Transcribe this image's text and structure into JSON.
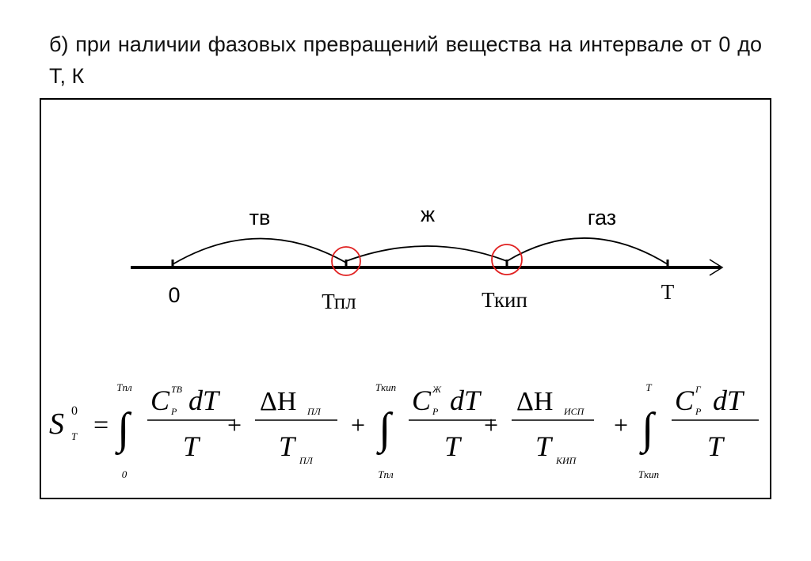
{
  "heading": "б) при наличии фазовых превращений вещества на интервале от 0 до Т, К",
  "diagram": {
    "phases": [
      "тв",
      "ж",
      "газ"
    ],
    "axis_labels": [
      "0",
      "Тпл",
      "Ткип",
      "Т"
    ]
  },
  "formula": {
    "lhs": {
      "symbol": "S",
      "sup": "0",
      "sub": "T",
      "equals": "="
    },
    "terms": [
      {
        "op": null,
        "upper": "Tпл",
        "lower": "0",
        "coef": "C",
        "sup": "ТВ",
        "sub": "P",
        "diff": "dT",
        "den": "T"
      },
      {
        "op": "+",
        "num": "ΔH",
        "num_sub": "ПЛ",
        "den": "T",
        "den_sub": "ПЛ"
      },
      {
        "op": "+",
        "upper": "Tкип",
        "lower": "Tпл",
        "coef": "C",
        "sup": "Ж",
        "sub": "P",
        "diff": "dT",
        "den": "T"
      },
      {
        "op": "+",
        "num": "ΔH",
        "num_sub": "ИСП",
        "den": "T",
        "den_sub": "КИП"
      },
      {
        "op": "+",
        "upper": "T",
        "lower": "Tкип",
        "coef": "C",
        "sup": "Г",
        "sub": "P",
        "diff": "dT",
        "den": "T"
      }
    ]
  }
}
